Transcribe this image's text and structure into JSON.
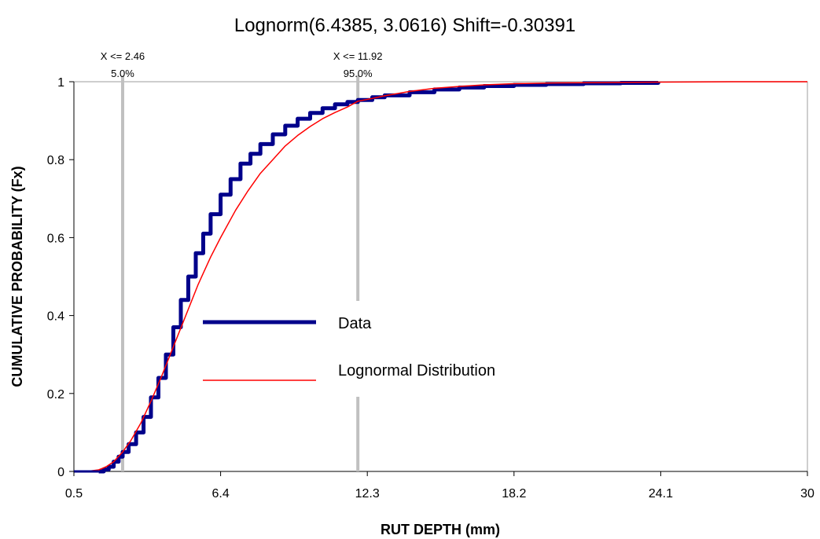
{
  "chart_data": {
    "type": "line",
    "title": "Lognorm(6.4385, 3.0616) Shift=-0.30391",
    "xlabel": "RUT DEPTH (mm)",
    "ylabel": "CUMULATIVE PROBABILITY (Fx)",
    "xlim": [
      0.5,
      30
    ],
    "ylim": [
      0,
      1
    ],
    "x_ticks": [
      "0.5",
      "6.4",
      "12.3",
      "18.2",
      "24.1",
      "30"
    ],
    "y_ticks": [
      "0",
      "0.2",
      "0.4",
      "0.6",
      "0.8",
      "1"
    ],
    "grid": false,
    "legend": "center",
    "markers": [
      {
        "x": 2.46,
        "label": "X <= 2.46",
        "pct": "5.0%"
      },
      {
        "x": 11.92,
        "label": "X <= 11.92",
        "pct": "95.0%"
      }
    ],
    "series": [
      {
        "name": "Data",
        "color": "#00008b",
        "x": [
          1.5,
          1.7,
          1.9,
          2.1,
          2.3,
          2.46,
          2.7,
          3.0,
          3.3,
          3.6,
          3.9,
          4.2,
          4.5,
          4.8,
          5.1,
          5.4,
          5.7,
          6.0,
          6.4,
          6.8,
          7.2,
          7.6,
          8.0,
          8.5,
          9.0,
          9.5,
          10.0,
          10.5,
          11.0,
          11.5,
          11.92,
          12.5,
          13.0,
          14.0,
          15.0,
          16.0,
          17.0,
          18.2,
          19.5,
          21.0,
          22.5,
          24.0
        ],
        "y": [
          0.0,
          0.005,
          0.012,
          0.025,
          0.038,
          0.05,
          0.07,
          0.1,
          0.14,
          0.19,
          0.24,
          0.3,
          0.37,
          0.44,
          0.5,
          0.56,
          0.61,
          0.66,
          0.71,
          0.75,
          0.79,
          0.815,
          0.84,
          0.865,
          0.887,
          0.905,
          0.92,
          0.932,
          0.942,
          0.948,
          0.953,
          0.96,
          0.965,
          0.973,
          0.98,
          0.985,
          0.989,
          0.992,
          0.994,
          0.996,
          0.997,
          0.998
        ]
      },
      {
        "name": "Lognormal Distribution",
        "color": "#ff0000",
        "x": [
          0.5,
          1.0,
          1.5,
          1.8,
          2.1,
          2.46,
          2.8,
          3.2,
          3.6,
          4.0,
          4.5,
          5.0,
          5.5,
          6.0,
          6.4,
          7.0,
          7.5,
          8.0,
          8.5,
          9.0,
          9.5,
          10.0,
          10.5,
          11.0,
          11.5,
          11.92,
          12.5,
          13.0,
          14.0,
          15.0,
          16.0,
          17.0,
          18.2,
          20.0,
          22.0,
          24.1,
          27.0,
          30.0
        ],
        "y": [
          0.0,
          0.0,
          0.004,
          0.012,
          0.025,
          0.05,
          0.08,
          0.125,
          0.18,
          0.24,
          0.32,
          0.4,
          0.48,
          0.55,
          0.6,
          0.67,
          0.72,
          0.765,
          0.8,
          0.835,
          0.862,
          0.885,
          0.905,
          0.921,
          0.935,
          0.95,
          0.957,
          0.964,
          0.975,
          0.983,
          0.988,
          0.992,
          0.995,
          0.997,
          0.998,
          0.999,
          1.0,
          1.0
        ]
      }
    ]
  }
}
